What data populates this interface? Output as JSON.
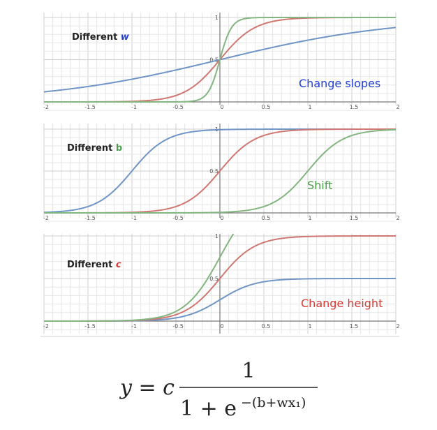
{
  "colors": {
    "blue": "#6f95c6",
    "red": "#cf7771",
    "green": "#82b57f",
    "label_blue": "#1f3fd6",
    "label_green": "#4f9a4d",
    "label_red": "#d83a35",
    "grid_minor": "#e6e6e6",
    "grid_major": "#cfcfcf",
    "axis": "#777777"
  },
  "chart_data": [
    {
      "type": "line",
      "title": "",
      "xlim": [
        -2,
        2
      ],
      "ylim": [
        0,
        1
      ],
      "x_ticks": [
        "-2",
        "-1.5",
        "-1",
        "-0.5",
        "0",
        "0.5",
        "1",
        "1.5",
        "2"
      ],
      "y_ticks": [
        "0.5",
        "1"
      ],
      "grid": true,
      "label_text": "Different",
      "label_symbol": "w",
      "annotation": "Change slopes",
      "series": [
        {
          "color": "blue",
          "params": {
            "w": 1,
            "b": 0,
            "c": 1
          }
        },
        {
          "color": "red",
          "params": {
            "w": 5,
            "b": 0,
            "c": 1
          }
        },
        {
          "color": "green",
          "params": {
            "w": 15,
            "b": 0,
            "c": 1
          }
        }
      ]
    },
    {
      "type": "line",
      "title": "",
      "xlim": [
        -2,
        2
      ],
      "ylim": [
        0,
        1
      ],
      "x_ticks": [
        "-2",
        "-1.5",
        "-1",
        "-0.5",
        "0",
        "0.5",
        "1",
        "1.5",
        "2"
      ],
      "y_ticks": [
        "0.5",
        "1"
      ],
      "grid": true,
      "label_text": "Different",
      "label_symbol": "b",
      "annotation": "Shift",
      "series": [
        {
          "color": "blue",
          "params": {
            "w": 5,
            "b": 5,
            "c": 1
          }
        },
        {
          "color": "red",
          "params": {
            "w": 5,
            "b": 0,
            "c": 1
          }
        },
        {
          "color": "green",
          "params": {
            "w": 5,
            "b": -5,
            "c": 1
          }
        }
      ]
    },
    {
      "type": "line",
      "title": "",
      "xlim": [
        -2,
        2
      ],
      "ylim": [
        0,
        1
      ],
      "x_ticks": [
        "-2",
        "-1.5",
        "-1",
        "-0.5",
        "0",
        "0.5",
        "1",
        "1.5",
        "2"
      ],
      "y_ticks": [
        "0.5",
        "1"
      ],
      "grid": true,
      "label_text": "Different",
      "label_symbol": "c",
      "annotation": "Change height",
      "series": [
        {
          "color": "blue",
          "params": {
            "w": 5,
            "b": 0,
            "c": 0.5
          }
        },
        {
          "color": "red",
          "params": {
            "w": 5,
            "b": 0,
            "c": 1
          }
        },
        {
          "color": "green",
          "params": {
            "w": 5,
            "b": 0,
            "c": 1.5
          }
        }
      ]
    }
  ],
  "formula": {
    "lhs": "y = c",
    "numerator": "1",
    "denominator": "1 + e",
    "exponent": "−(b+wx₁)"
  }
}
